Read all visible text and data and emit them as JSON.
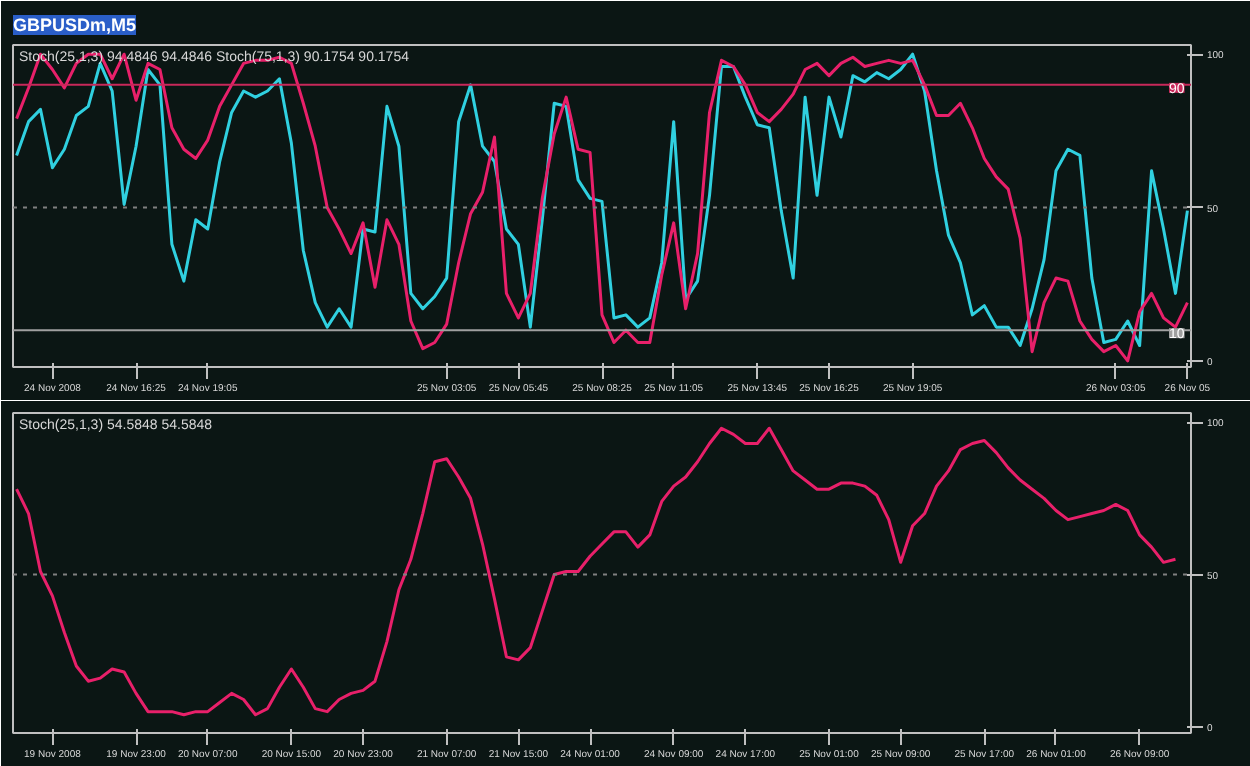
{
  "chart_data": [
    {
      "type": "line",
      "title": "GBPUSDm,M5",
      "annotations": [
        "Stoch(25,1,3) 94.4846 94.4846  Stoch(75,1,3) 90.1754 90.1754"
      ],
      "ylim": [
        -2,
        103
      ],
      "yticks": [
        0,
        50,
        100
      ],
      "grid": false,
      "categories": [
        null,
        null,
        null,
        "24 Nov 2008",
        null,
        null,
        null,
        null,
        null,
        null,
        "24 Nov 16:25",
        null,
        null,
        null,
        null,
        null,
        "24 Nov 19:05",
        null,
        null,
        null,
        null,
        null,
        null,
        null,
        null,
        null,
        null,
        null,
        null,
        null,
        null,
        null,
        null,
        null,
        null,
        null,
        "25 Nov 03:05",
        null,
        null,
        null,
        null,
        null,
        "25 Nov 05:45",
        null,
        null,
        null,
        null,
        null,
        null,
        "25 Nov 08:25",
        null,
        null,
        null,
        null,
        null,
        "25 Nov 11:05",
        null,
        null,
        null,
        null,
        null,
        null,
        "25 Nov 13:45",
        null,
        null,
        null,
        null,
        null,
        "25 Nov 16:25",
        null,
        null,
        null,
        null,
        null,
        null,
        "25 Nov 19:05",
        null,
        null,
        null,
        null,
        null,
        null,
        null,
        null,
        null,
        null,
        null,
        null,
        null,
        null,
        null,
        null,
        "26 Nov 03:05",
        null,
        null,
        null,
        null,
        null,
        "26 Nov 05"
      ],
      "ref_lines": [
        {
          "axis": "y",
          "value": 90,
          "label": "90",
          "color": "#c8285a"
        },
        {
          "axis": "y",
          "value": 10,
          "label": "10",
          "color": "#a0a0a0"
        },
        {
          "axis": "y",
          "value": 50,
          "color": "#808080",
          "line_style": "dotted"
        }
      ],
      "series": [
        {
          "color": "#30d0e0",
          "values": [
            67,
            78,
            82,
            63,
            69,
            80,
            83,
            97,
            88,
            51,
            70,
            95,
            90,
            38,
            26,
            46,
            43,
            65,
            81,
            88,
            86,
            88,
            92,
            71,
            36,
            19,
            11,
            17,
            11,
            43,
            42,
            83,
            70,
            22,
            17,
            21,
            27,
            78,
            90,
            70,
            65,
            43,
            38,
            11,
            46,
            84,
            83,
            59,
            53,
            52,
            14,
            15,
            11,
            14,
            32,
            78,
            20,
            26,
            54,
            96,
            96,
            86,
            77,
            76,
            49,
            27,
            86,
            54,
            86,
            73,
            93,
            91,
            94,
            92,
            95,
            100,
            88,
            62,
            41,
            32,
            15,
            18,
            11,
            11,
            5,
            17,
            33,
            62,
            69,
            67,
            27,
            6,
            7,
            13,
            5,
            62,
            43,
            22,
            49
          ]
        },
        {
          "color": "#e8206a",
          "values": [
            79,
            89,
            100,
            95,
            89,
            97,
            100,
            100,
            92,
            100,
            85,
            97,
            95,
            76,
            69,
            66,
            72,
            83,
            90,
            97,
            98,
            98,
            99,
            97,
            84,
            70,
            50,
            43,
            35,
            45,
            24,
            46,
            38,
            13,
            4,
            6,
            12,
            32,
            48,
            55,
            73,
            22,
            14,
            22,
            53,
            74,
            86,
            69,
            68,
            15,
            6,
            10,
            6,
            6,
            28,
            45,
            17,
            35,
            81,
            98,
            96,
            90,
            81,
            78,
            82,
            87,
            95,
            97,
            93,
            97,
            99,
            96,
            97,
            98,
            97,
            98,
            90,
            80,
            80,
            84,
            76,
            66,
            60,
            56,
            40,
            3,
            19,
            27,
            26,
            13,
            7,
            3,
            5,
            0,
            16,
            22,
            14,
            11,
            19
          ]
        }
      ]
    },
    {
      "type": "line",
      "annotations": [
        "Stoch(25,1,3) 54.5848 54.5848"
      ],
      "ylim": [
        -2,
        103
      ],
      "yticks": [
        0,
        50,
        100
      ],
      "grid": false,
      "categories": [
        null,
        null,
        null,
        "19 Nov 2008",
        null,
        null,
        null,
        null,
        null,
        null,
        "19 Nov 23:00",
        null,
        null,
        null,
        null,
        null,
        "20 Nov 07:00",
        null,
        null,
        null,
        null,
        null,
        null,
        "20 Nov 15:00",
        null,
        null,
        null,
        null,
        null,
        "20 Nov 23:00",
        null,
        null,
        null,
        null,
        null,
        null,
        "21 Nov 07:00",
        null,
        null,
        null,
        null,
        null,
        "21 Nov 15:00",
        null,
        null,
        null,
        null,
        null,
        "24 Nov 01:00",
        null,
        null,
        null,
        null,
        null,
        null,
        "24 Nov 09:00",
        null,
        null,
        null,
        null,
        null,
        "24 Nov 17:00",
        null,
        null,
        null,
        null,
        null,
        null,
        "25 Nov 01:00",
        null,
        null,
        null,
        null,
        null,
        "25 Nov 09:00",
        null,
        null,
        null,
        null,
        null,
        null,
        "25 Nov 17:00",
        null,
        null,
        null,
        null,
        null,
        "26 Nov 01:00",
        null,
        null,
        null,
        null,
        null,
        null,
        "26 Nov 09:00",
        null,
        null,
        null,
        null
      ],
      "ref_lines": [
        {
          "axis": "y",
          "value": 50,
          "color": "#808080",
          "line_style": "dotted"
        }
      ],
      "series": [
        {
          "color": "#e8206a",
          "values": [
            78,
            70,
            51,
            43,
            31,
            20,
            15,
            16,
            19,
            18,
            11,
            5,
            5,
            5,
            4,
            5,
            5,
            8,
            11,
            9,
            4,
            6,
            13,
            19,
            13,
            6,
            5,
            9,
            11,
            12,
            15,
            28,
            45,
            55,
            70,
            87,
            88,
            82,
            75,
            60,
            42,
            23,
            22,
            26,
            38,
            50,
            51,
            51,
            56,
            60,
            64,
            64,
            59,
            63,
            74,
            79,
            82,
            87,
            93,
            98,
            96,
            93,
            93,
            98,
            91,
            84,
            81,
            78,
            78,
            80,
            80,
            79,
            76,
            68,
            54,
            66,
            70,
            79,
            84,
            91,
            93,
            94,
            90,
            85,
            81,
            78,
            75,
            71,
            68,
            69,
            70,
            71,
            73,
            71,
            63,
            59,
            54,
            55,
            null
          ]
        }
      ]
    }
  ]
}
